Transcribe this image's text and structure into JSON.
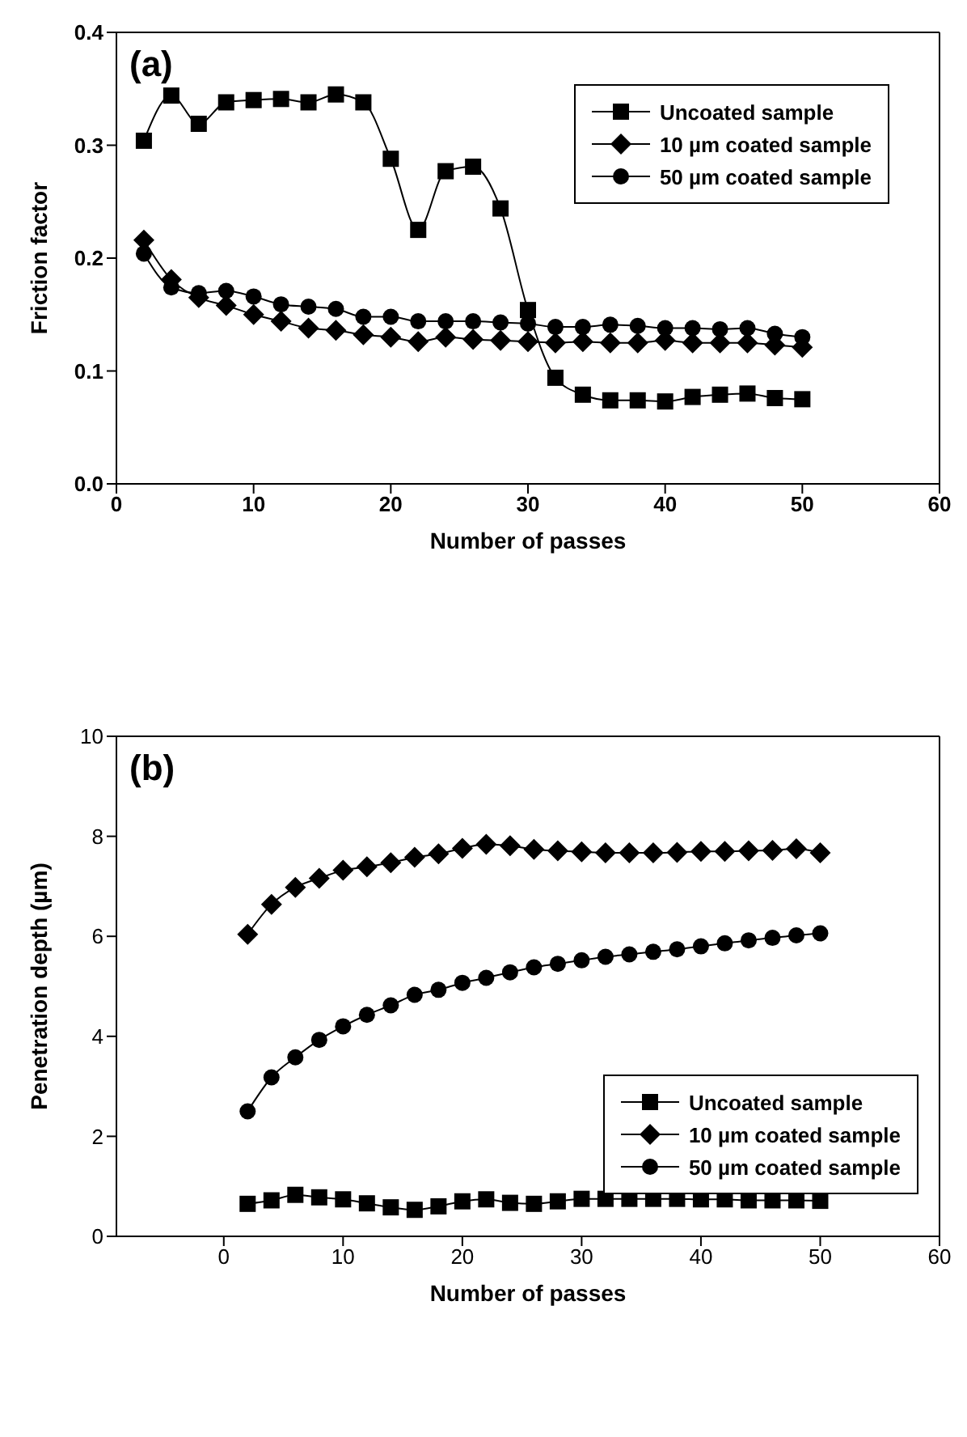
{
  "chart_data": [
    {
      "type": "line",
      "annotations": [
        "(a)"
      ],
      "xlabel": "Number of passes",
      "ylabel": "Friction factor",
      "x": [
        2,
        4,
        6,
        8,
        10,
        12,
        14,
        16,
        18,
        20,
        22,
        24,
        26,
        28,
        30,
        32,
        34,
        36,
        38,
        40,
        42,
        44,
        46,
        48,
        50
      ],
      "series": [
        {
          "name": "Uncoated sample",
          "color": "#000000",
          "marker": "square",
          "values": [
            0.304,
            0.344,
            0.319,
            0.338,
            0.34,
            0.341,
            0.338,
            0.345,
            0.338,
            0.288,
            0.225,
            0.277,
            0.281,
            0.244,
            0.154,
            0.094,
            0.079,
            0.074,
            0.074,
            0.073,
            0.077,
            0.079,
            0.08,
            0.076,
            0.075
          ]
        },
        {
          "name": "10 µm coated sample",
          "color": "#000000",
          "marker": "diamond",
          "values": [
            0.216,
            0.181,
            0.165,
            0.158,
            0.15,
            0.144,
            0.138,
            0.136,
            0.132,
            0.13,
            0.126,
            0.13,
            0.128,
            0.127,
            0.126,
            0.125,
            0.126,
            0.125,
            0.125,
            0.127,
            0.125,
            0.125,
            0.125,
            0.123,
            0.121
          ]
        },
        {
          "name": "50 µm coated sample",
          "color": "#000000",
          "marker": "circle",
          "values": [
            0.204,
            0.174,
            0.169,
            0.171,
            0.166,
            0.159,
            0.157,
            0.155,
            0.148,
            0.148,
            0.144,
            0.144,
            0.144,
            0.143,
            0.142,
            0.139,
            0.139,
            0.141,
            0.14,
            0.138,
            0.138,
            0.137,
            0.138,
            0.133,
            0.13
          ]
        }
      ],
      "xlim": [
        0,
        60
      ],
      "xticks": [
        0,
        10,
        20,
        30,
        40,
        50,
        60
      ],
      "ylim": [
        0,
        0.4
      ],
      "yticks": [
        {
          "value": 0,
          "label": "0.0"
        },
        0.1,
        0.2,
        0.3,
        0.4
      ],
      "grid": false,
      "legend": "top right",
      "line_style": "solid"
    },
    {
      "type": "line",
      "annotations": [
        "(b)"
      ],
      "xlabel": "Number of passes",
      "ylabel": "Penetration depth (µm)",
      "x": [
        2,
        4,
        6,
        8,
        10,
        12,
        14,
        16,
        18,
        20,
        22,
        24,
        26,
        28,
        30,
        32,
        34,
        36,
        38,
        40,
        42,
        44,
        46,
        48,
        50
      ],
      "series": [
        {
          "name": "Uncoated sample",
          "color": "#000000",
          "marker": "square",
          "values": [
            0.65,
            0.72,
            0.83,
            0.78,
            0.74,
            0.66,
            0.58,
            0.53,
            0.6,
            0.7,
            0.74,
            0.67,
            0.65,
            0.7,
            0.75,
            0.75,
            0.75,
            0.75,
            0.75,
            0.74,
            0.74,
            0.72,
            0.72,
            0.72,
            0.71
          ]
        },
        {
          "name": "10 µm coated sample",
          "color": "#000000",
          "marker": "diamond",
          "values": [
            6.04,
            6.64,
            6.98,
            7.16,
            7.32,
            7.39,
            7.47,
            7.58,
            7.65,
            7.76,
            7.84,
            7.81,
            7.74,
            7.71,
            7.69,
            7.67,
            7.67,
            7.67,
            7.68,
            7.7,
            7.7,
            7.71,
            7.72,
            7.75,
            7.67
          ]
        },
        {
          "name": "50 µm coated sample",
          "color": "#000000",
          "marker": "circle",
          "values": [
            2.5,
            3.18,
            3.58,
            3.93,
            4.2,
            4.43,
            4.62,
            4.83,
            4.93,
            5.07,
            5.17,
            5.28,
            5.38,
            5.45,
            5.52,
            5.59,
            5.64,
            5.69,
            5.74,
            5.8,
            5.86,
            5.92,
            5.97,
            6.02,
            6.06
          ]
        }
      ],
      "xlim": [
        -9,
        60
      ],
      "xticks": [
        0,
        10,
        20,
        30,
        40,
        50,
        60
      ],
      "ylim": [
        0,
        10
      ],
      "yticks": [
        0,
        2,
        4,
        6,
        8,
        10
      ],
      "grid": false,
      "legend": "bottom right",
      "line_style": "solid"
    }
  ]
}
